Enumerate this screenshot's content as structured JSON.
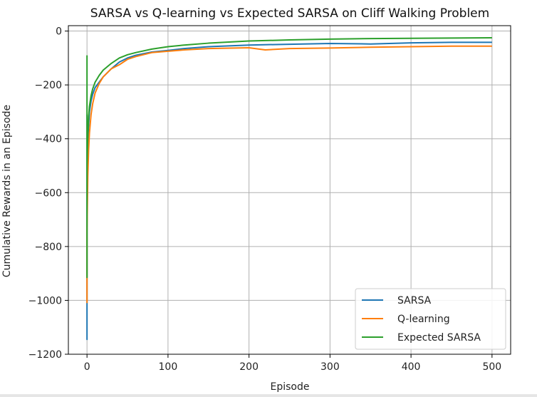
{
  "chart_data": {
    "type": "line",
    "title": "SARSA vs Q-learning vs Expected SARSA on Cliff Walking Problem",
    "xlabel": "Episode",
    "ylabel": "Cumulative Rewards in an Episode",
    "xlim": [
      -23,
      523
    ],
    "ylim": [
      -1200,
      20
    ],
    "xticks": [
      0,
      100,
      200,
      300,
      400,
      500
    ],
    "yticks": [
      0,
      -200,
      -400,
      -600,
      -800,
      -1000,
      -1200
    ],
    "grid": true,
    "legend_position": "lower-right",
    "series": [
      {
        "name": "SARSA",
        "color": "#1f77b4",
        "x": [
          0,
          0,
          0,
          1,
          2,
          3,
          5,
          7,
          10,
          15,
          20,
          30,
          40,
          50,
          60,
          80,
          100,
          120,
          150,
          200,
          250,
          300,
          350,
          400,
          450,
          500
        ],
        "y": [
          -310,
          -1145,
          -620,
          -420,
          -350,
          -300,
          -260,
          -235,
          -210,
          -190,
          -170,
          -140,
          -115,
          -100,
          -90,
          -78,
          -72,
          -65,
          -58,
          -52,
          -49,
          -46,
          -48,
          -44,
          -42,
          -42
        ]
      },
      {
        "name": "Q-learning",
        "color": "#ff7f0e",
        "x": [
          0,
          0,
          0,
          1,
          2,
          3,
          5,
          7,
          10,
          15,
          20,
          30,
          40,
          45,
          50,
          60,
          80,
          100,
          120,
          150,
          200,
          220,
          250,
          300,
          350,
          400,
          450,
          500
        ],
        "y": [
          -1010,
          -920,
          -740,
          -540,
          -440,
          -380,
          -310,
          -270,
          -230,
          -195,
          -170,
          -140,
          -125,
          -115,
          -105,
          -95,
          -80,
          -75,
          -70,
          -65,
          -62,
          -70,
          -65,
          -63,
          -60,
          -58,
          -56,
          -56
        ]
      },
      {
        "name": "Expected SARSA",
        "color": "#2ca02c",
        "x": [
          0,
          0,
          0,
          1,
          2,
          3,
          5,
          7,
          10,
          15,
          20,
          30,
          40,
          50,
          60,
          80,
          100,
          120,
          150,
          200,
          250,
          300,
          350,
          400,
          450,
          500
        ],
        "y": [
          -90,
          -915,
          -500,
          -380,
          -320,
          -280,
          -240,
          -215,
          -190,
          -165,
          -145,
          -120,
          -100,
          -88,
          -80,
          -67,
          -58,
          -52,
          -45,
          -37,
          -33,
          -30,
          -28,
          -27,
          -26,
          -25
        ]
      }
    ]
  }
}
